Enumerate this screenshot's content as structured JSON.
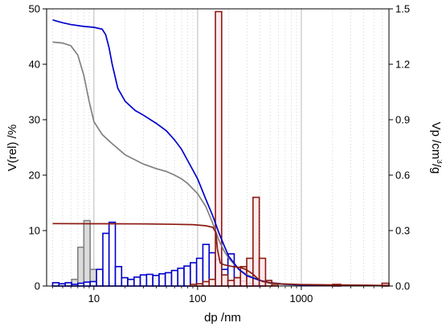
{
  "chart_data": {
    "type": "bar",
    "xlabel": "dp /nm",
    "ylabel_left": "V(rel) /%",
    "ylabel_right_main": "Vp /cm",
    "ylabel_right_sup": "3",
    "ylabel_right_tail": "/g",
    "x_scale": "log",
    "xlim": [
      3.5,
      7000
    ],
    "ylim_left": [
      0,
      50
    ],
    "ylim_right": [
      0,
      1.5
    ],
    "x_ticks": [
      {
        "value": 10,
        "label": "10"
      },
      {
        "value": 100,
        "label": "100"
      },
      {
        "value": 1000,
        "label": "1000"
      }
    ],
    "y_left_ticks": [
      {
        "value": 0,
        "label": "0"
      },
      {
        "value": 10,
        "label": "10"
      },
      {
        "value": 20,
        "label": "20"
      },
      {
        "value": 30,
        "label": "30"
      },
      {
        "value": 40,
        "label": "40"
      },
      {
        "value": 50,
        "label": "50"
      }
    ],
    "y_right_ticks": [
      {
        "value": 0,
        "label": "0.0"
      },
      {
        "value": 0.3,
        "label": "0.3"
      },
      {
        "value": 0.6,
        "label": "0.6"
      },
      {
        "value": 0.9,
        "label": "0.9"
      },
      {
        "value": 1.2,
        "label": "1.2"
      },
      {
        "value": 1.5,
        "label": "1.5"
      }
    ],
    "grid": "vertical dotted minor, solid at decades",
    "series": [
      {
        "color": "#808080",
        "fill": "#d8d8d8",
        "histogram": [
          [
            4.0,
            4.6,
            0.3
          ],
          [
            4.6,
            5.3,
            0.2
          ],
          [
            5.3,
            6.1,
            0.4
          ],
          [
            6.1,
            7.0,
            1.2
          ],
          [
            7.0,
            8.0,
            7.0
          ],
          [
            8.0,
            9.2,
            11.8
          ],
          [
            9.2,
            10.6,
            3.0
          ],
          [
            10.6,
            12.2,
            1.0
          ],
          [
            12.2,
            14.0,
            0.6
          ],
          [
            14.0,
            16.1,
            0.5
          ],
          [
            16.1,
            18.5,
            0.5
          ],
          [
            18.5,
            21.2,
            0.7
          ],
          [
            21.2,
            24.4,
            1.0
          ],
          [
            24.4,
            28.0,
            1.1
          ],
          [
            28.0,
            32.2,
            1.2
          ],
          [
            32.2,
            37.0,
            1.3
          ],
          [
            37.0,
            42.5,
            1.4
          ],
          [
            42.5,
            48.8,
            1.5
          ],
          [
            48.8,
            56.1,
            1.6
          ],
          [
            56.1,
            64.4,
            1.8
          ],
          [
            64.4,
            74.0,
            2.0
          ],
          [
            74.0,
            85.1,
            2.3
          ],
          [
            85.1,
            97.8,
            2.6
          ],
          [
            97.8,
            112.4,
            3.0
          ],
          [
            112.4,
            129.2,
            3.6
          ],
          [
            129.2,
            148.5,
            4.4
          ],
          [
            148.5,
            170.6,
            2.6
          ],
          [
            170.6,
            196.1,
            1.6
          ],
          [
            196.1,
            225.4,
            1.0
          ],
          [
            225.4,
            259.0,
            0.6
          ],
          [
            259.0,
            297.7,
            0.3
          ],
          [
            297.7,
            342.1,
            0.2
          ],
          [
            342.1,
            393.2,
            0.1
          ]
        ],
        "cumulative": [
          [
            4,
            1.32
          ],
          [
            5,
            1.315
          ],
          [
            6,
            1.3
          ],
          [
            7,
            1.25
          ],
          [
            8,
            1.14
          ],
          [
            9,
            1.0
          ],
          [
            10,
            0.89
          ],
          [
            12,
            0.82
          ],
          [
            15,
            0.77
          ],
          [
            20,
            0.71
          ],
          [
            30,
            0.66
          ],
          [
            40,
            0.635
          ],
          [
            50,
            0.62
          ],
          [
            60,
            0.6
          ],
          [
            70,
            0.58
          ],
          [
            80,
            0.555
          ],
          [
            100,
            0.5
          ],
          [
            120,
            0.43
          ],
          [
            140,
            0.34
          ],
          [
            160,
            0.25
          ],
          [
            180,
            0.19
          ],
          [
            200,
            0.15
          ],
          [
            250,
            0.09
          ],
          [
            300,
            0.06
          ],
          [
            400,
            0.03
          ],
          [
            500,
            0.015
          ],
          [
            700,
            0.008
          ],
          [
            1000,
            0.005
          ],
          [
            7000,
            0.002
          ]
        ]
      },
      {
        "color": "#0000cc",
        "fill": "#ffffff",
        "histogram": [
          [
            4.0,
            4.6,
            0.6
          ],
          [
            4.6,
            5.3,
            0.4
          ],
          [
            5.3,
            6.1,
            0.6
          ],
          [
            6.1,
            7.0,
            0.3
          ],
          [
            7.0,
            8.0,
            0.5
          ],
          [
            8.0,
            9.2,
            0.7
          ],
          [
            9.2,
            10.6,
            0.8
          ],
          [
            10.6,
            12.2,
            3.0
          ],
          [
            12.2,
            14.0,
            9.5
          ],
          [
            14.0,
            16.1,
            11.5
          ],
          [
            16.1,
            18.5,
            3.5
          ],
          [
            18.5,
            21.2,
            1.5
          ],
          [
            21.2,
            24.4,
            1.2
          ],
          [
            24.4,
            28.0,
            1.6
          ],
          [
            28.0,
            32.2,
            2.0
          ],
          [
            32.2,
            37.0,
            2.1
          ],
          [
            37.0,
            42.5,
            1.9
          ],
          [
            42.5,
            48.8,
            2.2
          ],
          [
            48.8,
            56.1,
            2.4
          ],
          [
            56.1,
            64.4,
            2.8
          ],
          [
            64.4,
            74.0,
            3.2
          ],
          [
            74.0,
            85.1,
            3.6
          ],
          [
            85.1,
            97.8,
            4.2
          ],
          [
            97.8,
            112.4,
            5.0
          ],
          [
            112.4,
            129.2,
            7.5
          ],
          [
            129.2,
            148.5,
            6.0
          ],
          [
            148.5,
            170.6,
            4.8
          ],
          [
            170.6,
            196.1,
            3.0
          ],
          [
            196.1,
            225.4,
            5.8
          ],
          [
            225.4,
            259.0,
            1.5
          ],
          [
            259.0,
            297.7,
            0.9
          ],
          [
            297.7,
            342.1,
            0.5
          ],
          [
            342.1,
            393.2,
            0.3
          ],
          [
            393.2,
            451.9,
            0.2
          ]
        ],
        "cumulative": [
          [
            4,
            1.44
          ],
          [
            5,
            1.425
          ],
          [
            6,
            1.415
          ],
          [
            8,
            1.405
          ],
          [
            10,
            1.4
          ],
          [
            12,
            1.39
          ],
          [
            13,
            1.36
          ],
          [
            14,
            1.29
          ],
          [
            15,
            1.2
          ],
          [
            17,
            1.07
          ],
          [
            20,
            1.0
          ],
          [
            25,
            0.95
          ],
          [
            30,
            0.925
          ],
          [
            40,
            0.88
          ],
          [
            50,
            0.84
          ],
          [
            60,
            0.79
          ],
          [
            70,
            0.74
          ],
          [
            80,
            0.68
          ],
          [
            100,
            0.58
          ],
          [
            120,
            0.47
          ],
          [
            140,
            0.38
          ],
          [
            160,
            0.29
          ],
          [
            180,
            0.22
          ],
          [
            200,
            0.16
          ],
          [
            250,
            0.09
          ],
          [
            300,
            0.055
          ],
          [
            400,
            0.03
          ],
          [
            500,
            0.018
          ],
          [
            700,
            0.01
          ],
          [
            1000,
            0.006
          ],
          [
            7000,
            0.002
          ]
        ]
      },
      {
        "color": "#8b1a10",
        "fill": "#ffe8ec",
        "histogram": [
          [
            85.1,
            97.8,
            0.3
          ],
          [
            97.8,
            112.4,
            0.4
          ],
          [
            112.4,
            129.2,
            0.8
          ],
          [
            129.2,
            148.5,
            1.2
          ],
          [
            148.5,
            170.6,
            49.5
          ],
          [
            170.6,
            196.1,
            2.0
          ],
          [
            196.1,
            225.4,
            1.0
          ],
          [
            225.4,
            259.0,
            1.5
          ],
          [
            259.0,
            297.7,
            3.5
          ],
          [
            297.7,
            342.1,
            5.0
          ],
          [
            342.1,
            393.2,
            16.0
          ],
          [
            393.2,
            451.9,
            5.0
          ],
          [
            451.9,
            519.4,
            1.0
          ],
          [
            519.4,
            597.0,
            0.3
          ],
          [
            2000,
            2400,
            0.3
          ],
          [
            6000,
            7000,
            0.5
          ]
        ],
        "cumulative": [
          [
            4,
            0.338
          ],
          [
            10,
            0.337
          ],
          [
            30,
            0.336
          ],
          [
            60,
            0.334
          ],
          [
            90,
            0.332
          ],
          [
            120,
            0.326
          ],
          [
            140,
            0.318
          ],
          [
            150,
            0.29
          ],
          [
            155,
            0.2
          ],
          [
            165,
            0.125
          ],
          [
            180,
            0.115
          ],
          [
            220,
            0.105
          ],
          [
            260,
            0.1
          ],
          [
            290,
            0.09
          ],
          [
            310,
            0.08
          ],
          [
            340,
            0.065
          ],
          [
            380,
            0.04
          ],
          [
            420,
            0.025
          ],
          [
            500,
            0.018
          ],
          [
            600,
            0.012
          ],
          [
            800,
            0.01
          ],
          [
            1000,
            0.008
          ],
          [
            2000,
            0.006
          ],
          [
            5000,
            0.004
          ],
          [
            7000,
            0.002
          ]
        ]
      }
    ]
  }
}
